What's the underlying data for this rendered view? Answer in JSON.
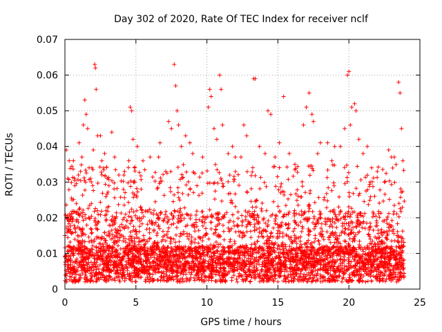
{
  "chart_data": {
    "type": "scatter",
    "title": "Day 302 of 2020, Rate Of TEC Index for receiver nclf",
    "xlabel": "GPS time / hours",
    "ylabel": "ROTI / TECUs",
    "xlim": [
      0,
      25
    ],
    "ylim": [
      0,
      0.07
    ],
    "xticks": [
      0,
      5,
      10,
      15,
      20,
      25
    ],
    "yticks": [
      0,
      0.01,
      0.02,
      0.03,
      0.04,
      0.05,
      0.06,
      0.07
    ],
    "xtick_labels": [
      "0",
      "5",
      "10",
      "15",
      "20",
      "25"
    ],
    "ytick_labels": [
      "0",
      "0.01",
      "0.02",
      "0.03",
      "0.04",
      "0.05",
      "0.06",
      "0.07"
    ],
    "grid": true,
    "marker": "plus",
    "color": "#ff0000",
    "series": [
      {
        "points": [
          [
            0.1,
            0.039
          ],
          [
            0.2,
            0.031
          ],
          [
            0.3,
            0.036
          ],
          [
            0.5,
            0.025
          ],
          [
            0.6,
            0.036
          ],
          [
            0.7,
            0.029
          ],
          [
            0.8,
            0.024
          ],
          [
            1.0,
            0.041
          ],
          [
            1.1,
            0.033
          ],
          [
            1.2,
            0.037
          ],
          [
            1.3,
            0.046
          ],
          [
            1.4,
            0.053
          ],
          [
            1.5,
            0.049
          ],
          [
            1.6,
            0.045
          ],
          [
            1.7,
            0.034
          ],
          [
            1.9,
            0.034
          ],
          [
            2.0,
            0.039
          ],
          [
            2.1,
            0.063
          ],
          [
            2.15,
            0.062
          ],
          [
            2.2,
            0.056
          ],
          [
            2.3,
            0.043
          ],
          [
            2.5,
            0.043
          ],
          [
            2.6,
            0.036
          ],
          [
            2.8,
            0.038
          ],
          [
            3.1,
            0.029
          ],
          [
            3.3,
            0.044
          ],
          [
            3.5,
            0.037
          ],
          [
            3.8,
            0.032
          ],
          [
            4.2,
            0.033
          ],
          [
            4.5,
            0.036
          ],
          [
            4.6,
            0.051
          ],
          [
            4.7,
            0.05
          ],
          [
            4.8,
            0.042
          ],
          [
            4.9,
            0.034
          ],
          [
            5.1,
            0.04
          ],
          [
            5.5,
            0.036
          ],
          [
            6.0,
            0.037
          ],
          [
            6.6,
            0.037
          ],
          [
            6.7,
            0.041
          ],
          [
            7.1,
            0.033
          ],
          [
            7.3,
            0.047
          ],
          [
            7.5,
            0.045
          ],
          [
            7.7,
            0.063
          ],
          [
            7.8,
            0.057
          ],
          [
            7.9,
            0.05
          ],
          [
            8.0,
            0.046
          ],
          [
            8.2,
            0.04
          ],
          [
            8.5,
            0.043
          ],
          [
            8.8,
            0.041
          ],
          [
            9.0,
            0.038
          ],
          [
            9.3,
            0.029
          ],
          [
            9.7,
            0.037
          ],
          [
            10.1,
            0.051
          ],
          [
            10.2,
            0.056
          ],
          [
            10.3,
            0.054
          ],
          [
            10.5,
            0.045
          ],
          [
            10.7,
            0.042
          ],
          [
            10.9,
            0.06
          ],
          [
            11.0,
            0.056
          ],
          [
            11.1,
            0.046
          ],
          [
            11.5,
            0.038
          ],
          [
            11.8,
            0.04
          ],
          [
            12.0,
            0.037
          ],
          [
            12.4,
            0.037
          ],
          [
            12.6,
            0.046
          ],
          [
            12.8,
            0.043
          ],
          [
            13.3,
            0.059
          ],
          [
            13.4,
            0.059
          ],
          [
            13.7,
            0.04
          ],
          [
            14.1,
            0.038
          ],
          [
            14.3,
            0.05
          ],
          [
            14.5,
            0.049
          ],
          [
            14.8,
            0.037
          ],
          [
            15.1,
            0.041
          ],
          [
            15.4,
            0.054
          ],
          [
            15.8,
            0.038
          ],
          [
            16.2,
            0.035
          ],
          [
            16.8,
            0.046
          ],
          [
            17.0,
            0.051
          ],
          [
            17.2,
            0.055
          ],
          [
            17.4,
            0.049
          ],
          [
            17.5,
            0.047
          ],
          [
            17.8,
            0.038
          ],
          [
            18.0,
            0.041
          ],
          [
            18.5,
            0.041
          ],
          [
            18.8,
            0.036
          ],
          [
            19.0,
            0.04
          ],
          [
            19.4,
            0.04
          ],
          [
            19.7,
            0.045
          ],
          [
            19.9,
            0.06
          ],
          [
            20.0,
            0.061
          ],
          [
            20.1,
            0.046
          ],
          [
            20.2,
            0.051
          ],
          [
            20.4,
            0.052
          ],
          [
            20.5,
            0.05
          ],
          [
            20.7,
            0.042
          ],
          [
            21.0,
            0.038
          ],
          [
            21.3,
            0.04
          ],
          [
            21.6,
            0.034
          ],
          [
            22.0,
            0.033
          ],
          [
            22.5,
            0.03
          ],
          [
            22.8,
            0.039
          ],
          [
            23.0,
            0.037
          ],
          [
            23.2,
            0.037
          ],
          [
            23.5,
            0.058
          ],
          [
            23.6,
            0.055
          ],
          [
            23.7,
            0.045
          ],
          [
            23.8,
            0.036
          ]
        ]
      }
    ]
  }
}
